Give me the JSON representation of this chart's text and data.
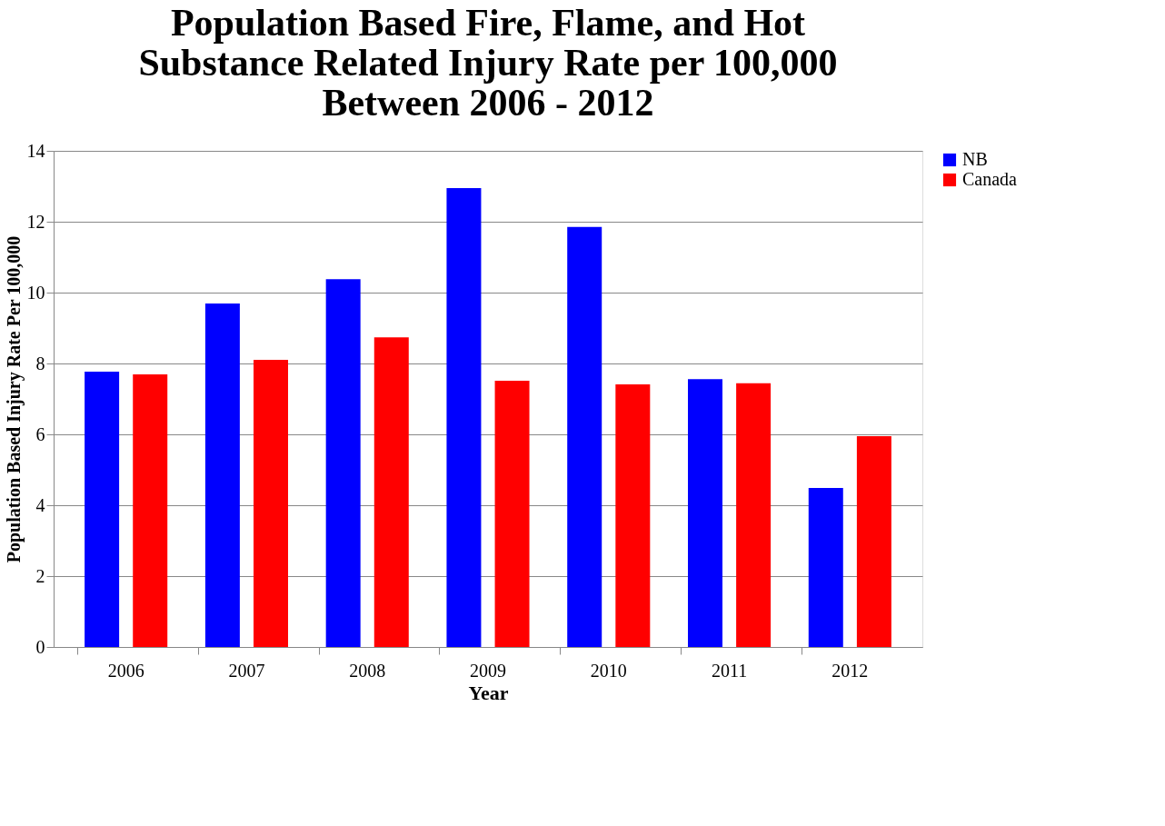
{
  "chart_data": {
    "type": "bar",
    "title": "Population Based Fire, Flame, and Hot Substance Related Injury Rate per 100,000 Between 2006 - 2012",
    "xlabel": "Year",
    "ylabel": "Population Based Injury Rate Per 100,000",
    "categories": [
      "2006",
      "2007",
      "2008",
      "2009",
      "2010",
      "2011",
      "2012"
    ],
    "series": [
      {
        "name": "NB",
        "color": "#0000ff",
        "values": [
          7.77,
          9.69,
          10.38,
          12.95,
          11.85,
          7.56,
          4.49
        ]
      },
      {
        "name": "Canada",
        "color": "#ff0000",
        "values": [
          7.69,
          8.1,
          8.74,
          7.51,
          7.41,
          7.44,
          5.95
        ]
      }
    ],
    "ylim": [
      0,
      14
    ],
    "yticks": [
      0,
      2,
      4,
      6,
      8,
      10,
      12,
      14
    ],
    "grid": "y",
    "legend": "right"
  }
}
